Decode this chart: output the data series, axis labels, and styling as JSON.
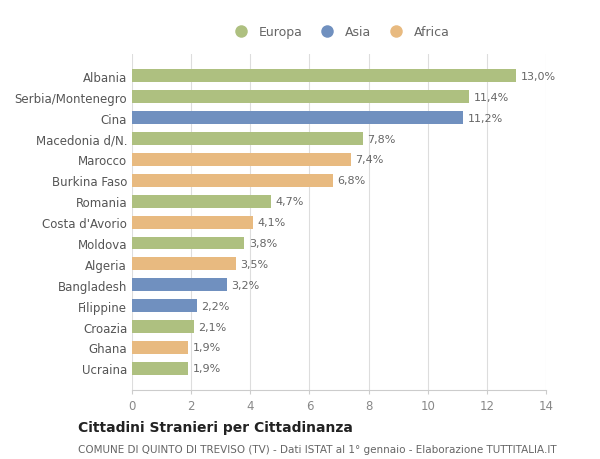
{
  "categories": [
    "Ucraina",
    "Ghana",
    "Croazia",
    "Filippine",
    "Bangladesh",
    "Algeria",
    "Moldova",
    "Costa d'Avorio",
    "Romania",
    "Burkina Faso",
    "Marocco",
    "Macedonia d/N.",
    "Cina",
    "Serbia/Montenegro",
    "Albania"
  ],
  "values": [
    1.9,
    1.9,
    2.1,
    2.2,
    3.2,
    3.5,
    3.8,
    4.1,
    4.7,
    6.8,
    7.4,
    7.8,
    11.2,
    11.4,
    13.0
  ],
  "labels": [
    "1,9%",
    "1,9%",
    "2,1%",
    "2,2%",
    "3,2%",
    "3,5%",
    "3,8%",
    "4,1%",
    "4,7%",
    "6,8%",
    "7,4%",
    "7,8%",
    "11,2%",
    "11,4%",
    "13,0%"
  ],
  "continents": [
    "Europa",
    "Africa",
    "Europa",
    "Asia",
    "Asia",
    "Africa",
    "Europa",
    "Africa",
    "Europa",
    "Africa",
    "Africa",
    "Europa",
    "Asia",
    "Europa",
    "Europa"
  ],
  "colors": {
    "Europa": "#aec080",
    "Asia": "#7090bf",
    "Africa": "#e8ba80"
  },
  "title": "Cittadini Stranieri per Cittadinanza",
  "subtitle": "COMUNE DI QUINTO DI TREVISO (TV) - Dati ISTAT al 1° gennaio - Elaborazione TUTTITALIA.IT",
  "xlim": [
    0,
    14
  ],
  "xticks": [
    0,
    2,
    4,
    6,
    8,
    10,
    12,
    14
  ],
  "background_color": "#ffffff",
  "grid_color": "#dddddd",
  "bar_height": 0.62,
  "label_fontsize": 8.0,
  "title_fontsize": 10,
  "subtitle_fontsize": 7.5,
  "tick_fontsize": 8.5,
  "ytick_fontsize": 8.5
}
